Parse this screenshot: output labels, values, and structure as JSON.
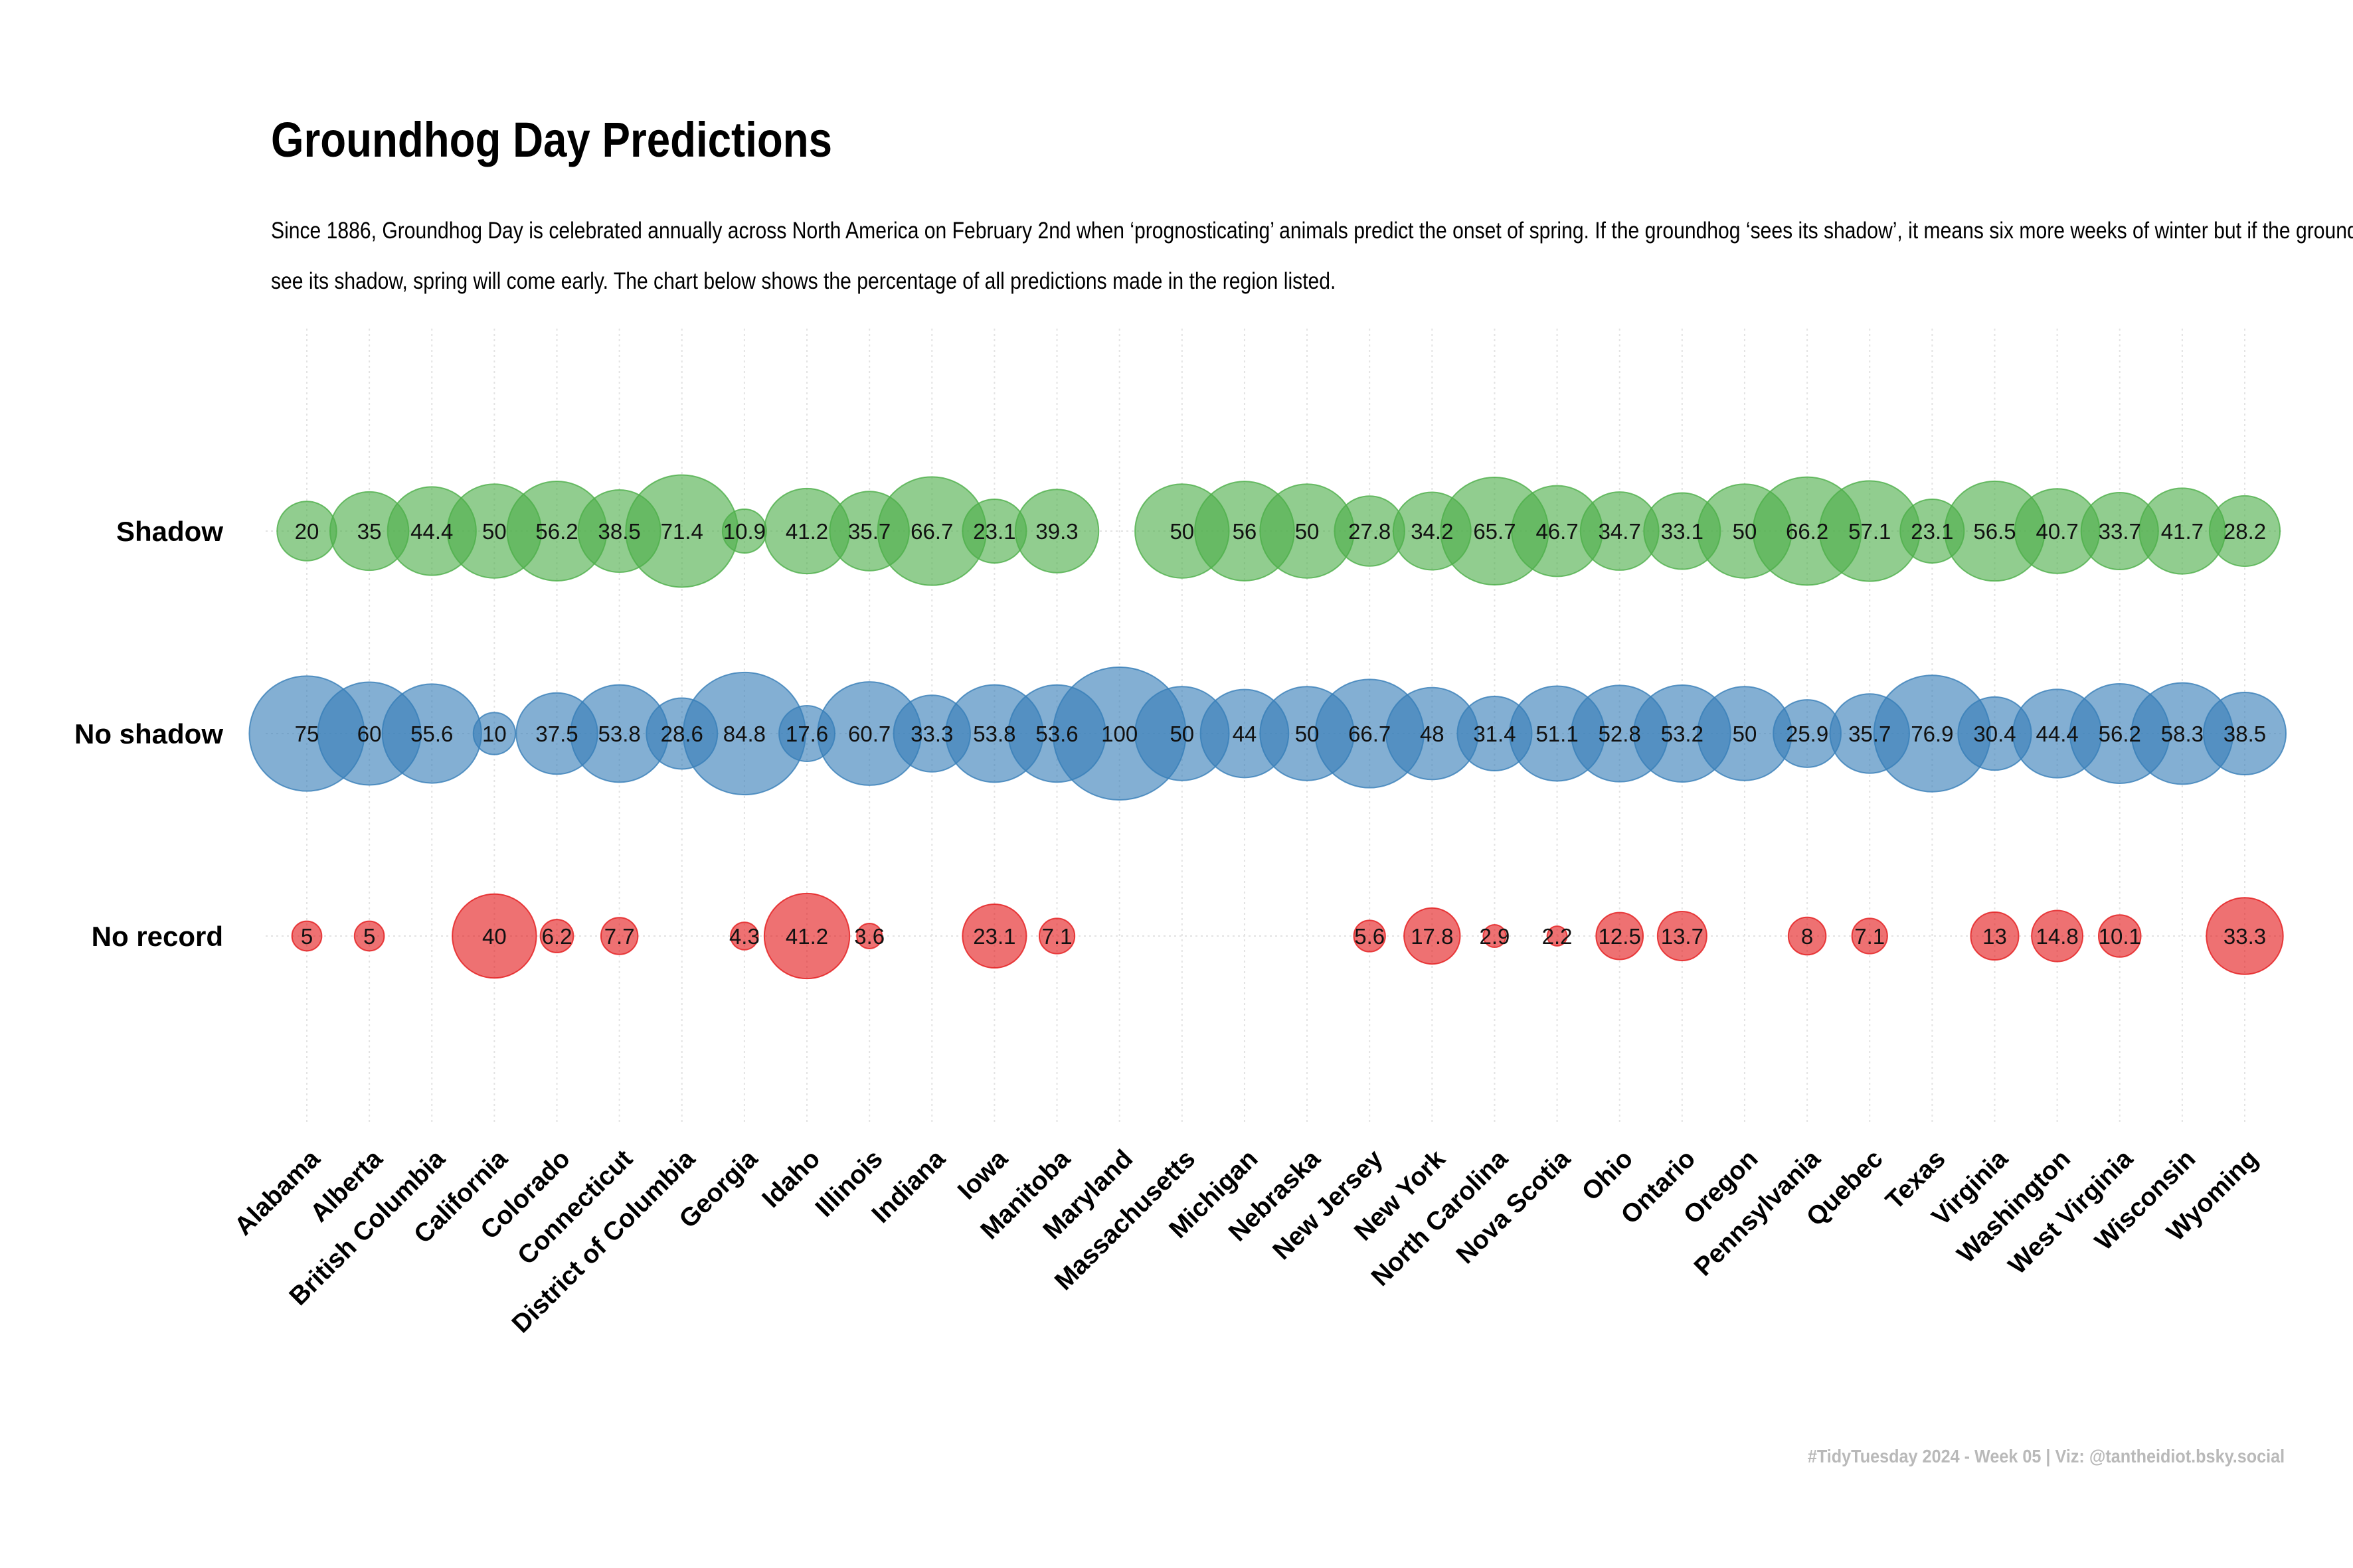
{
  "chart_data": {
    "type": "bubble",
    "title": "Groundhog Day Predictions",
    "subtitle": "Since 1886, Groundhog Day is celebrated annually across North America on February 2nd when ‘prognosticating’ animals predict the onset of spring. If the groundhog ‘sees its shadow’, it means six more weeks of winter but if the groundhog doesn’t see its shadow, spring will come early. The chart below shows the percentage of all predictions made in the region listed.",
    "caption": "#TidyTuesday 2024 - Week 05 | Viz: @tantheidiot.bsky.social",
    "xlabel": "",
    "ylabel": "",
    "unit": "percent",
    "grid": true,
    "categories": [
      "Alabama",
      "Alberta",
      "British Columbia",
      "California",
      "Colorado",
      "Connecticut",
      "District of Columbia",
      "Georgia",
      "Idaho",
      "Illinois",
      "Indiana",
      "Iowa",
      "Manitoba",
      "Maryland",
      "Massachusetts",
      "Michigan",
      "Nebraska",
      "New Jersey",
      "New York",
      "North Carolina",
      "Nova Scotia",
      "Ohio",
      "Ontario",
      "Oregon",
      "Pennsylvania",
      "Quebec",
      "Texas",
      "Virginia",
      "Washington",
      "West Virginia",
      "Wisconsin",
      "Wyoming"
    ],
    "series": [
      {
        "name": "Shadow",
        "color": "#4daf4a",
        "values": [
          20,
          35,
          44.4,
          50,
          56.2,
          38.5,
          71.4,
          10.9,
          41.2,
          35.7,
          66.7,
          23.1,
          39.3,
          null,
          50,
          56,
          50,
          27.8,
          34.2,
          65.7,
          46.7,
          34.7,
          33.1,
          50,
          66.2,
          57.1,
          23.1,
          56.5,
          40.7,
          33.7,
          41.7,
          28.2
        ]
      },
      {
        "name": "No shadow",
        "color": "#377eb8",
        "values": [
          75,
          60,
          55.6,
          10,
          37.5,
          53.8,
          28.6,
          84.8,
          17.6,
          60.7,
          33.3,
          53.8,
          53.6,
          100,
          50,
          44,
          50,
          66.7,
          48,
          31.4,
          51.1,
          52.8,
          53.2,
          50,
          25.9,
          35.7,
          76.9,
          30.4,
          44.4,
          56.2,
          58.3,
          38.5
        ]
      },
      {
        "name": "No record",
        "color": "#e41a1c",
        "values": [
          5,
          5,
          null,
          40,
          6.2,
          7.7,
          null,
          4.3,
          41.2,
          3.6,
          null,
          23.1,
          7.1,
          null,
          null,
          null,
          null,
          5.6,
          17.8,
          2.9,
          2.2,
          12.5,
          13.7,
          null,
          8,
          7.1,
          null,
          13,
          14.8,
          10.1,
          null,
          33.3
        ]
      }
    ]
  }
}
